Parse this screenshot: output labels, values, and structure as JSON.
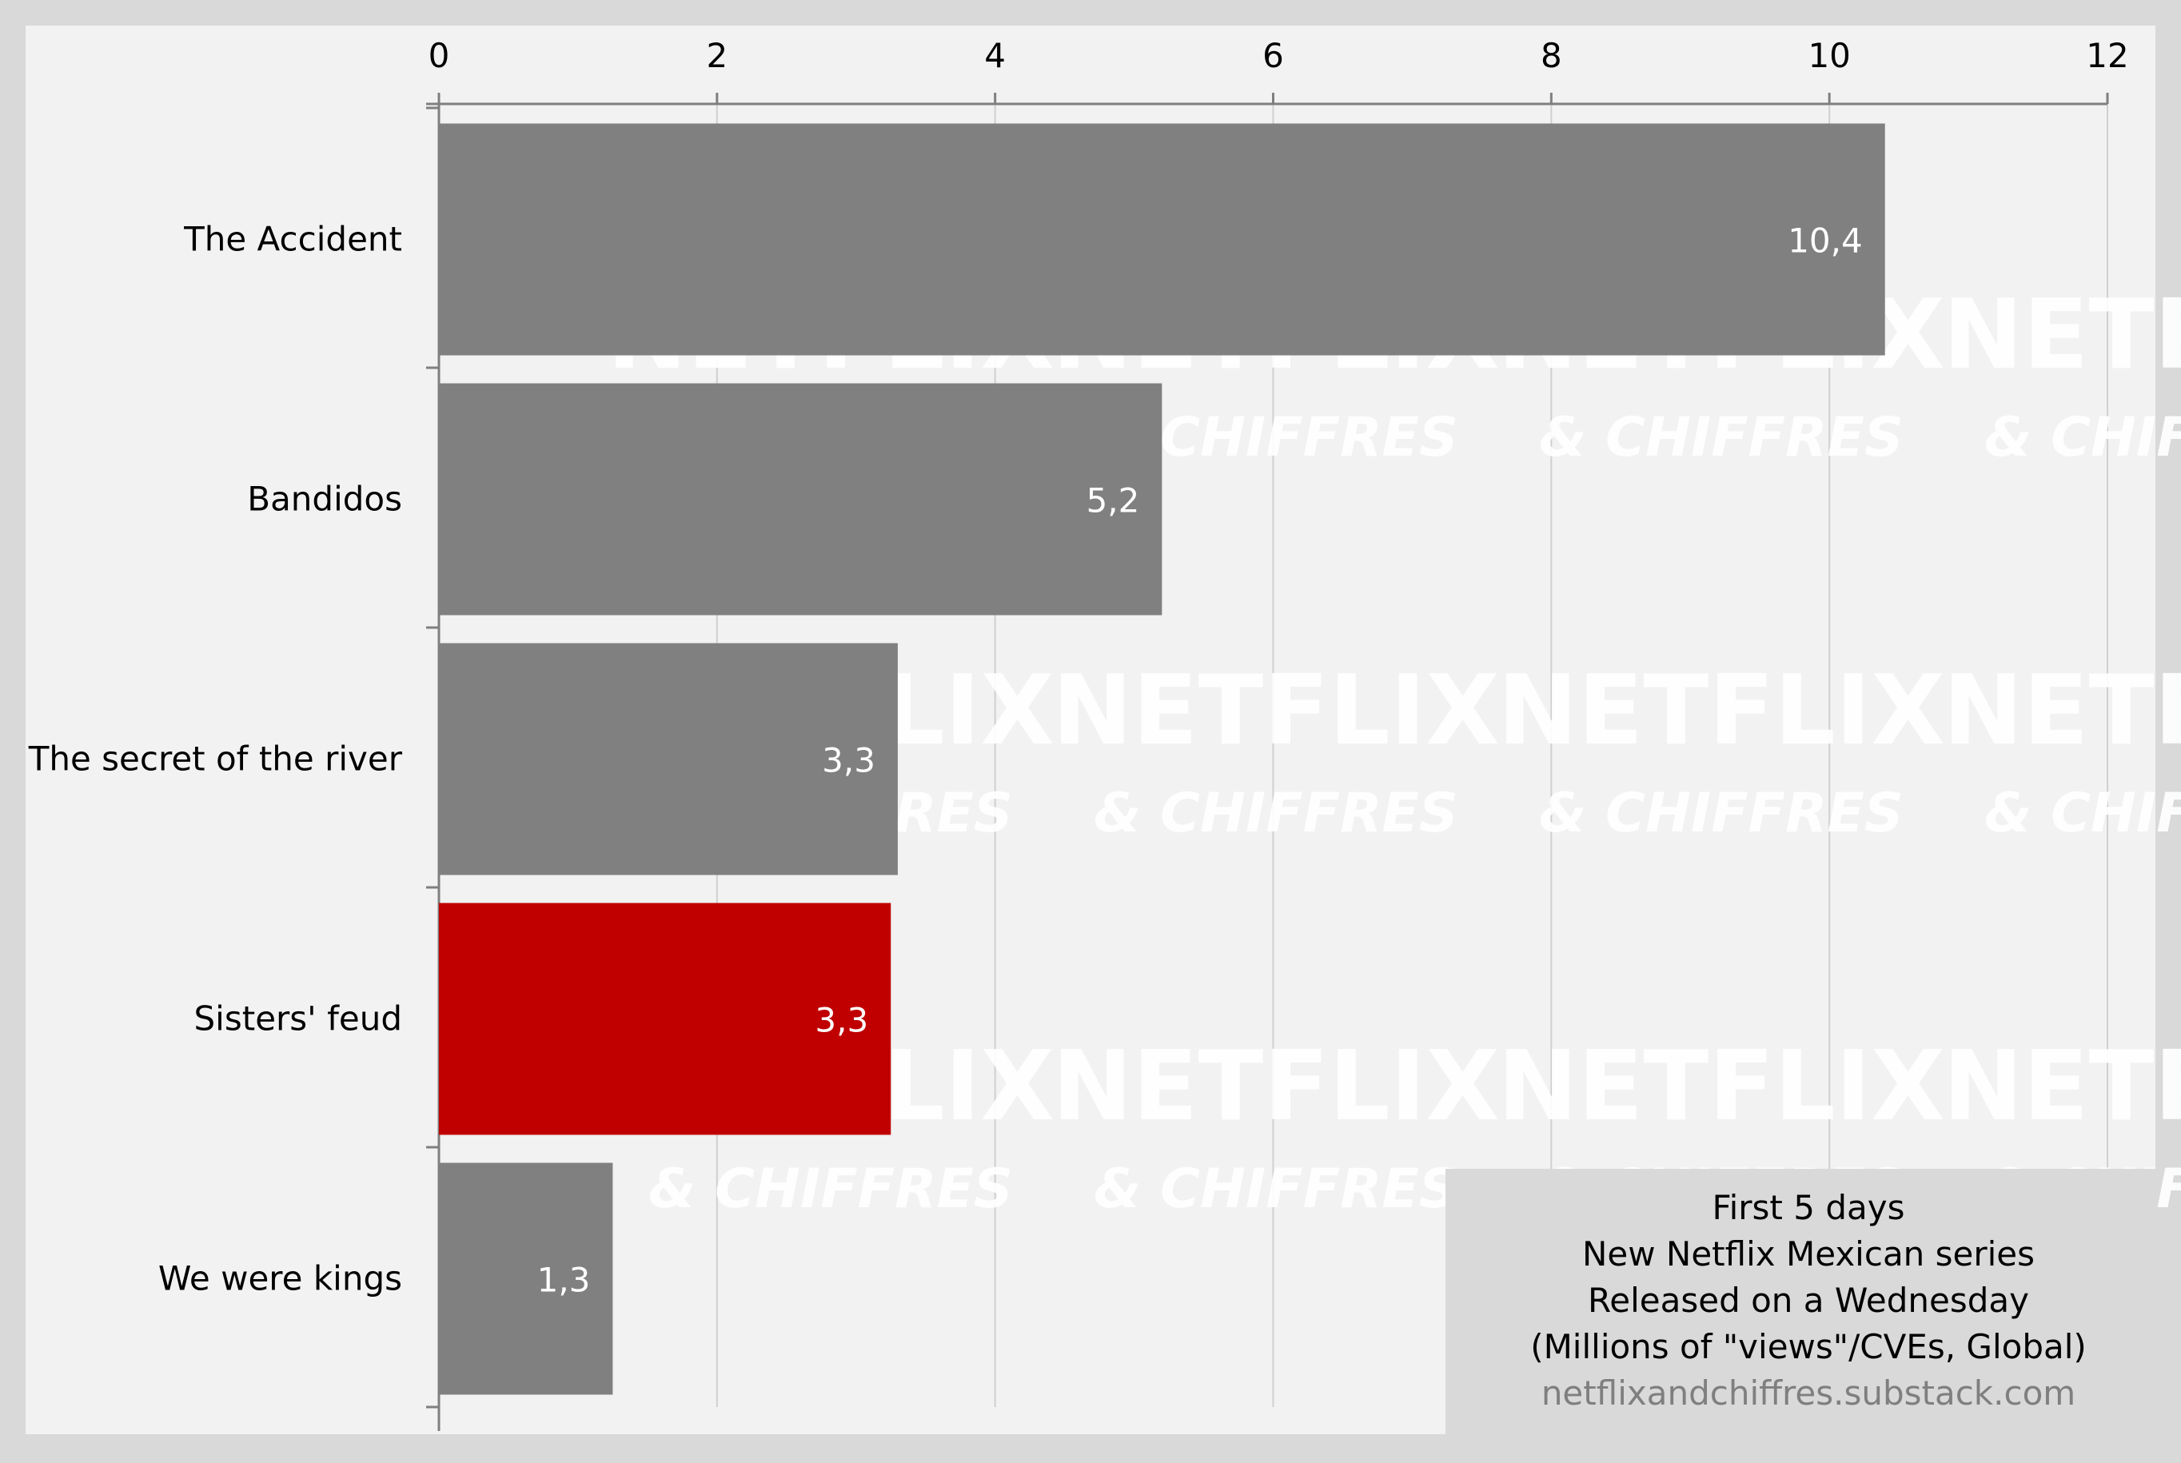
{
  "watermark": {
    "line1": "NETFLIX",
    "line2": "& CHIFFRES"
  },
  "info_box": {
    "lines": [
      "First 5 days",
      "New Netflix Mexican series",
      "Released on a Wednesday",
      "(Millions of \"views\"/CVEs, Global)"
    ],
    "source": "netflixandchiffres.substack.com"
  },
  "colors": {
    "page_background": "#d9d9d9",
    "plot_background": "#f2f2f2",
    "bar_default": "#808080",
    "bar_highlight": "#c00000",
    "info_box_background": "#d9d9d9",
    "source_text": "#7f7f7f",
    "watermark": "#ffffff"
  },
  "chart_data": {
    "type": "bar",
    "orientation": "horizontal",
    "xlim": [
      0,
      12
    ],
    "x_ticks": [
      0,
      2,
      4,
      6,
      8,
      10,
      12
    ],
    "x_tick_labels": [
      "0",
      "2",
      "4",
      "6",
      "8",
      "10",
      "12"
    ],
    "x_axis_position": "top",
    "grid": true,
    "categories": [
      "The Accident",
      "Bandidos",
      "The secret of the river",
      "Sisters' feud",
      "We were kings"
    ],
    "values": [
      10.4,
      5.2,
      3.3,
      3.25,
      1.25
    ],
    "data_labels": [
      "10,4",
      "5,2",
      "3,3",
      "3,3",
      "1,3"
    ],
    "highlight_index": 3
  }
}
